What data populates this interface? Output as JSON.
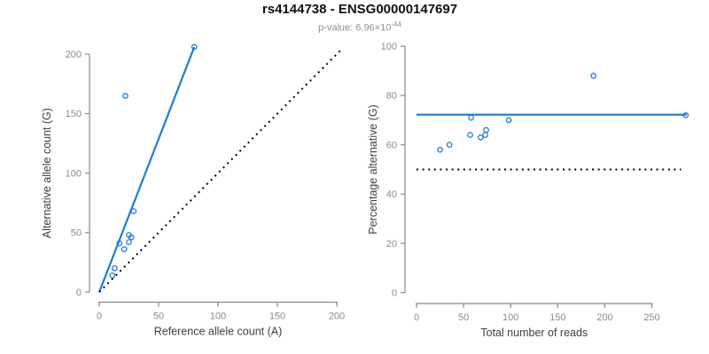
{
  "header": {
    "title": "rs4144738 - ENSG00000147697",
    "subtitle_prefix": "p-value: 6.96×10",
    "subtitle_exponent": "-44"
  },
  "colors": {
    "accent_blue": "#1c7dd9",
    "reference_black": "#000000",
    "axis_gray": "#888888",
    "tick_label_gray": "#8a8a8a",
    "axis_title_gray": "#404040",
    "title_black": "#111111",
    "subtitle_gray": "#8e8e8e",
    "background": "#ffffff"
  },
  "chart_data": {
    "type": "scatter",
    "title": "rs4144738 - ENSG00000147697",
    "subtitle": "p-value: 6.96×10^-44",
    "layout": "two-panel",
    "grid": false,
    "legend": "none",
    "plots": [
      {
        "type": "scatter",
        "xlabel": "Reference allele count (A)",
        "ylabel": "Alternative allele count (G)",
        "xticks": [
          0,
          50,
          100,
          150,
          200
        ],
        "yticks": [
          0,
          50,
          100,
          150,
          200
        ],
        "xlim": [
          0,
          200
        ],
        "ylim": [
          0,
          206
        ],
        "point_color": "#1c7dd9",
        "points": [
          [
            11,
            14
          ],
          [
            13,
            20
          ],
          [
            21,
            36
          ],
          [
            17,
            41
          ],
          [
            25,
            42
          ],
          [
            27,
            46
          ],
          [
            25,
            48
          ],
          [
            29,
            68
          ],
          [
            22,
            165
          ],
          [
            80,
            206
          ]
        ],
        "lines": [
          {
            "name": "allelic-fit-line",
            "style": "solid",
            "color": "#1c7dd9",
            "from": [
              0,
              0
            ],
            "to": [
              80,
              206
            ]
          },
          {
            "name": "identity-line",
            "style": "dotted",
            "color": "#000000",
            "from": [
              0,
              0
            ],
            "to": [
              203,
              203
            ]
          }
        ]
      },
      {
        "type": "scatter",
        "xlabel": "Total number of reads",
        "ylabel": "Percentage alternative (G)",
        "xticks": [
          0,
          50,
          100,
          150,
          200,
          250
        ],
        "yticks": [
          0,
          20,
          40,
          60,
          80,
          100
        ],
        "xlim": [
          0,
          287
        ],
        "ylim": [
          0,
          100
        ],
        "point_color": "#1c7dd9",
        "points": [
          [
            25,
            58
          ],
          [
            35,
            60
          ],
          [
            57,
            64
          ],
          [
            58,
            71
          ],
          [
            68,
            63
          ],
          [
            73,
            64
          ],
          [
            74,
            66
          ],
          [
            98,
            70
          ],
          [
            188,
            88
          ],
          [
            286,
            72
          ]
        ],
        "lines": [
          {
            "name": "mean-percentage-line",
            "style": "solid",
            "color": "#1c7dd9",
            "from": [
              0,
              72.2
            ],
            "to": [
              287,
              72.2
            ]
          },
          {
            "name": "fifty-percent-reference-line",
            "style": "dotted",
            "color": "#000000",
            "from": [
              0,
              50
            ],
            "to": [
              281,
              50
            ]
          }
        ]
      }
    ]
  }
}
